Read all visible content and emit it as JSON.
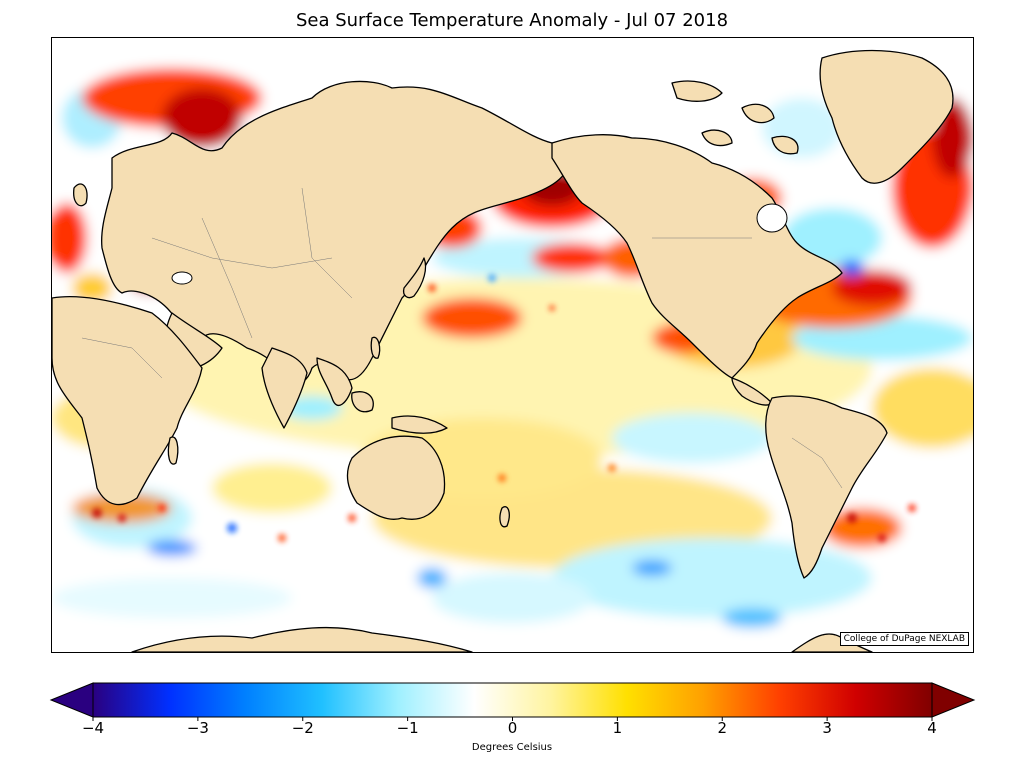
{
  "title": "Sea Surface Temperature Anomaly - Jul 07 2018",
  "credit": "College of DuPage NEXLAB",
  "colorbar": {
    "label": "Degrees Celsius",
    "min": -4,
    "max": 4,
    "extend": "both",
    "ticks": [
      {
        "value": -4,
        "label": "−4"
      },
      {
        "value": -3,
        "label": "−3"
      },
      {
        "value": -2,
        "label": "−2"
      },
      {
        "value": -1,
        "label": "−1"
      },
      {
        "value": 0,
        "label": "0"
      },
      {
        "value": 1,
        "label": "1"
      },
      {
        "value": 2,
        "label": "2"
      },
      {
        "value": 3,
        "label": "3"
      },
      {
        "value": 4,
        "label": "4"
      }
    ],
    "colors": [
      "#2a0080",
      "#0030ff",
      "#0080ff",
      "#20c0ff",
      "#9ff0ff",
      "#ffffff",
      "#fff4a0",
      "#ffe000",
      "#ffa000",
      "#ff4000",
      "#d00000",
      "#800000"
    ]
  },
  "colors": {
    "land": "#f5deb3",
    "coast": "#000000",
    "ocean_background": "#ffffff"
  }
}
